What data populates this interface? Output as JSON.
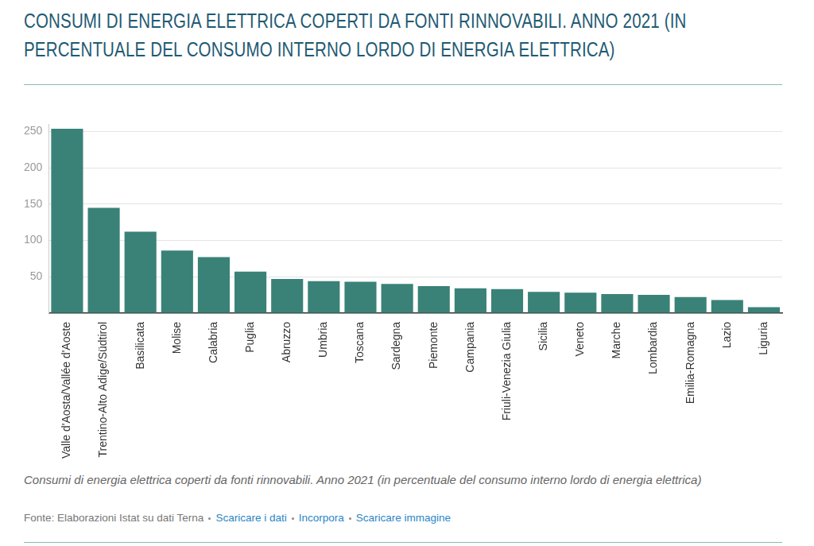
{
  "chart_data": {
    "type": "bar",
    "title": "CONSUMI DI ENERGIA ELETTRICA COPERTI DA FONTI RINNOVABILI. ANNO 2021 (IN PERCENTUALE DEL CONSUMO INTERNO LORDO DI ENERGIA ELETTRICA)",
    "caption": "Consumi di energia elettrica coperti da fonti rinnovabili. Anno 2021 (in percentuale del consumo interno lordo di energia elettrica)",
    "source": "Fonte: Elaborazioni Istat su dati Terna",
    "links": [
      "Scaricare i dati",
      "Incorpora",
      "Scaricare immagine"
    ],
    "categories": [
      "Valle d'Aosta/Vallée d'Aoste",
      "Trentino-Alto Adige/Südtirol",
      "Basilicata",
      "Molise",
      "Calabria",
      "Puglia",
      "Abruzzo",
      "Umbria",
      "Toscana",
      "Sardegna",
      "Piemonte",
      "Campania",
      "Friuli-Venezia Giulia",
      "Sicilia",
      "Veneto",
      "Marche",
      "Lombardia",
      "Emilia-Romagna",
      "Lazio",
      "Liguria"
    ],
    "values": [
      254,
      145,
      112,
      86,
      77,
      57,
      47,
      44,
      43,
      40,
      37,
      34,
      33,
      29,
      28,
      26,
      25,
      22,
      18,
      8
    ],
    "color": "#3a8278",
    "ylim": [
      0,
      260
    ],
    "yticks": [
      50,
      100,
      150,
      200,
      250
    ],
    "grid": true
  }
}
